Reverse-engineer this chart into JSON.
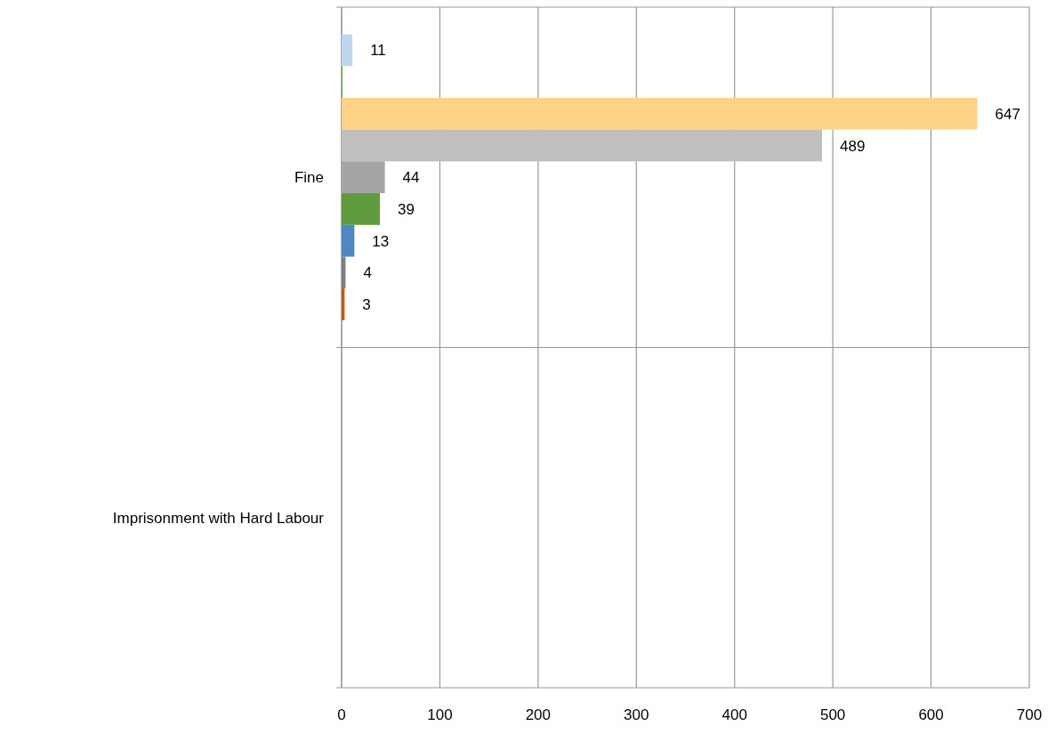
{
  "chart_data": {
    "type": "bar",
    "orientation": "horizontal",
    "categories": [
      "Fine",
      "Imprisonment with Hard Labour"
    ],
    "series": [
      {
        "color": "#bdd7ee",
        "values": [
          11,
          null
        ],
        "value_labels": [
          "11",
          null
        ]
      },
      {
        "color": "#70ad47",
        "values": [
          1,
          null
        ],
        "value_labels": [
          null,
          null
        ]
      },
      {
        "color": "#ffd386",
        "values": [
          647,
          null
        ],
        "value_labels": [
          "647",
          null
        ]
      },
      {
        "color": "#bfbfbf",
        "values": [
          489,
          null
        ],
        "value_labels": [
          "489",
          null
        ]
      },
      {
        "color": "#a5a5a5",
        "values": [
          44,
          null
        ],
        "value_labels": [
          "44",
          null
        ]
      },
      {
        "color": "#5f9b3c",
        "values": [
          39,
          null
        ],
        "value_labels": [
          "39",
          null
        ]
      },
      {
        "color": "#4e88c0",
        "values": [
          13,
          null
        ],
        "value_labels": [
          "13",
          null
        ]
      },
      {
        "color": "#7f7f7f",
        "values": [
          4,
          null
        ],
        "value_labels": [
          "4",
          null
        ]
      },
      {
        "color": "#c55a11",
        "values": [
          3,
          null
        ],
        "value_labels": [
          "3",
          null
        ]
      }
    ],
    "xlim": [
      0,
      700
    ],
    "xticks": [
      0,
      100,
      200,
      300,
      400,
      500,
      600,
      700
    ],
    "grid": "x"
  }
}
